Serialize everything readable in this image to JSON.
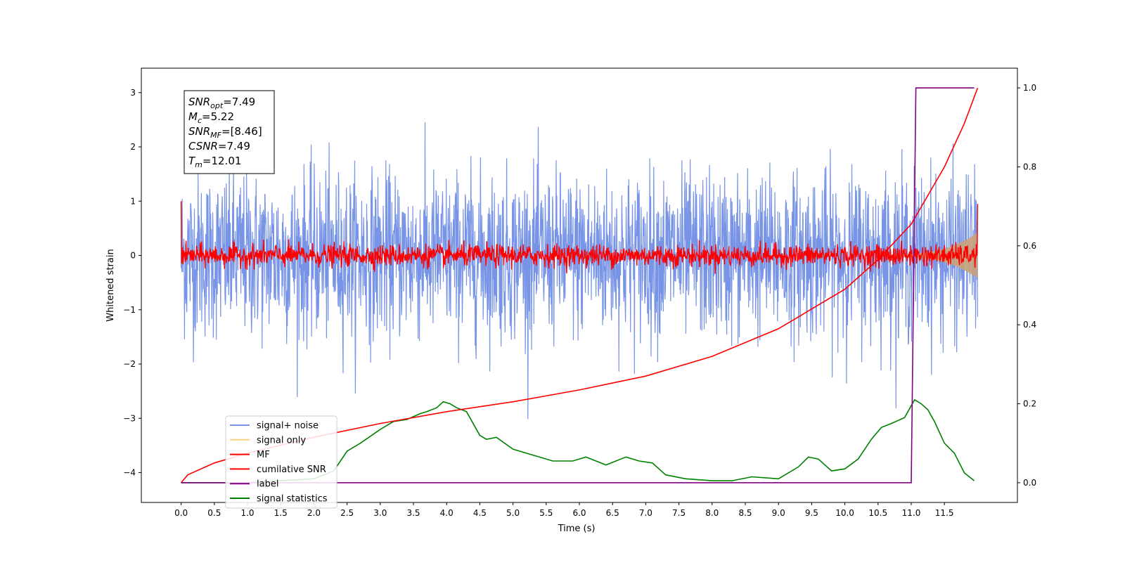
{
  "chart_data": {
    "type": "line",
    "xlabel": "Time (s)",
    "ylabel": "Whitened strain",
    "xlim": [
      -0.6,
      12.6
    ],
    "ylim": [
      -4.55,
      3.45
    ],
    "y2lim": [
      -0.05,
      1.05
    ],
    "grid": false,
    "legend_position": "lower-left",
    "x_ticks": [
      "0.0",
      "0.5",
      "1.0",
      "1.5",
      "2.0",
      "2.5",
      "3.0",
      "3.5",
      "4.0",
      "4.5",
      "5.0",
      "5.5",
      "6.0",
      "6.5",
      "7.0",
      "7.5",
      "8.0",
      "8.5",
      "9.0",
      "9.5",
      "10.0",
      "10.5",
      "11.0",
      "11.5"
    ],
    "y_ticks": [
      "3",
      "2",
      "1",
      "0",
      "−1",
      "−2",
      "−3",
      "−4"
    ],
    "y2_ticks": [
      "1.0",
      "0.8",
      "0.6",
      "0.4",
      "0.2",
      "0.0"
    ],
    "annotation": {
      "lines": [
        {
          "label": "SNR",
          "sub": "opt",
          "value": "=7.49"
        },
        {
          "label": "M",
          "sub": "c",
          "value": "=5.22"
        },
        {
          "label": "SNR",
          "sub": "MF",
          "value": "=[8.46]"
        },
        {
          "label": "CSNR",
          "sub": "",
          "value": "=7.49"
        },
        {
          "label": "T",
          "sub": "m",
          "value": "=12.01"
        }
      ]
    },
    "legend": [
      {
        "name": "signal+ noise",
        "color": "#7894e6"
      },
      {
        "name": "signal only",
        "color": "#ffd07a"
      },
      {
        "name": "MF",
        "color": "#ff0000"
      },
      {
        "name": "cumilative SNR",
        "color": "#ff0000"
      },
      {
        "name": "label",
        "color": "#800080"
      },
      {
        "name": "signal statistics",
        "color": "#008000"
      }
    ],
    "series": [
      {
        "name": "signal+ noise",
        "axis": "left",
        "description": "whitened noise, std about 0.75, spanning 0.0–12.0 s"
      },
      {
        "name": "signal only",
        "axis": "left",
        "description": "chirp rising near the end"
      },
      {
        "name": "MF",
        "axis": "left",
        "description": "matched filter output, std about 0.1"
      },
      {
        "name": "cumilative SNR",
        "axis": "right",
        "x": [
          0.0,
          0.1,
          0.5,
          1.0,
          2.0,
          3.0,
          4.0,
          5.0,
          6.0,
          7.0,
          8.0,
          9.0,
          10.0,
          10.5,
          11.0,
          11.5,
          11.8,
          12.0
        ],
        "y": [
          0.0,
          0.02,
          0.05,
          0.075,
          0.115,
          0.15,
          0.18,
          0.205,
          0.235,
          0.27,
          0.32,
          0.39,
          0.49,
          0.565,
          0.655,
          0.8,
          0.91,
          1.0
        ]
      },
      {
        "name": "label",
        "axis": "right",
        "x": [
          0.0,
          11.0,
          11.07,
          11.95
        ],
        "y": [
          0.0,
          0.0,
          1.0,
          1.0
        ]
      },
      {
        "name": "signal statistics",
        "axis": "right",
        "x": [
          0.0,
          0.5,
          1.0,
          1.5,
          2.0,
          2.3,
          2.5,
          2.7,
          3.0,
          3.2,
          3.4,
          3.6,
          3.7,
          3.85,
          3.95,
          4.05,
          4.15,
          4.3,
          4.5,
          4.6,
          4.75,
          5.0,
          5.3,
          5.6,
          5.9,
          6.1,
          6.4,
          6.7,
          6.9,
          7.1,
          7.3,
          7.6,
          8.0,
          8.3,
          8.6,
          9.0,
          9.3,
          9.45,
          9.6,
          9.8,
          10.0,
          10.2,
          10.4,
          10.55,
          10.7,
          10.9,
          11.05,
          11.15,
          11.25,
          11.35,
          11.5,
          11.65,
          11.8,
          11.95
        ],
        "y": [
          0.0,
          0.0,
          0.0,
          0.005,
          0.01,
          0.03,
          0.08,
          0.1,
          0.135,
          0.155,
          0.16,
          0.175,
          0.18,
          0.19,
          0.205,
          0.2,
          0.19,
          0.18,
          0.12,
          0.11,
          0.115,
          0.085,
          0.07,
          0.055,
          0.055,
          0.065,
          0.045,
          0.065,
          0.055,
          0.05,
          0.02,
          0.01,
          0.005,
          0.005,
          0.015,
          0.01,
          0.04,
          0.065,
          0.06,
          0.03,
          0.035,
          0.06,
          0.11,
          0.14,
          0.15,
          0.165,
          0.21,
          0.2,
          0.185,
          0.155,
          0.1,
          0.075,
          0.025,
          0.005
        ]
      }
    ]
  }
}
